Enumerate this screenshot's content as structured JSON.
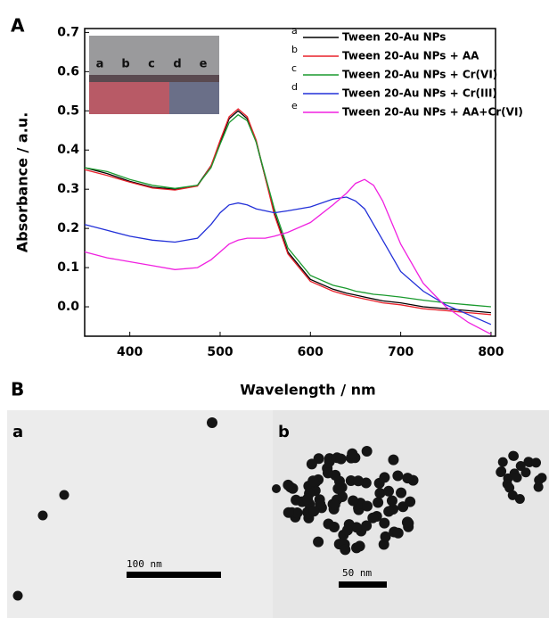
{
  "panel_labels": [
    "A",
    "B"
  ],
  "inset_labels": [
    "a",
    "b",
    "c",
    "d",
    "e"
  ],
  "tem": [
    {
      "label": "a",
      "scale_bar": "100 nm"
    },
    {
      "label": "b",
      "scale_bar": "50 nm"
    }
  ],
  "chart_data": {
    "type": "line",
    "xlabel": "Wavelength / nm",
    "ylabel": "Absorbance / a.u.",
    "x": [
      350,
      375,
      400,
      425,
      450,
      475,
      490,
      500,
      510,
      520,
      530,
      540,
      550,
      560,
      575,
      600,
      625,
      640,
      650,
      660,
      670,
      680,
      700,
      725,
      750,
      775,
      800
    ],
    "series": [
      {
        "key": "a",
        "name": "Tween 20-Au NPs",
        "color": "#000000",
        "values": [
          0.355,
          0.34,
          0.32,
          0.305,
          0.3,
          0.31,
          0.36,
          0.42,
          0.48,
          0.5,
          0.48,
          0.42,
          0.33,
          0.24,
          0.14,
          0.07,
          0.045,
          0.035,
          0.03,
          0.025,
          0.02,
          0.015,
          0.01,
          0.0,
          -0.005,
          -0.01,
          -0.015
        ]
      },
      {
        "key": "b",
        "name": "Tween 20-Au NPs + AA",
        "color": "#e8202a",
        "values": [
          0.35,
          0.335,
          0.318,
          0.303,
          0.298,
          0.308,
          0.36,
          0.425,
          0.485,
          0.505,
          0.485,
          0.425,
          0.33,
          0.235,
          0.135,
          0.065,
          0.04,
          0.03,
          0.025,
          0.02,
          0.015,
          0.01,
          0.005,
          -0.005,
          -0.01,
          -0.015,
          -0.02
        ]
      },
      {
        "key": "c",
        "name": "Tween 20-Au NPs + Cr(VI)",
        "color": "#1a9a2e",
        "values": [
          0.355,
          0.345,
          0.325,
          0.31,
          0.302,
          0.31,
          0.355,
          0.415,
          0.47,
          0.49,
          0.475,
          0.42,
          0.335,
          0.25,
          0.15,
          0.08,
          0.055,
          0.047,
          0.04,
          0.036,
          0.032,
          0.03,
          0.025,
          0.017,
          0.01,
          0.005,
          0.0
        ]
      },
      {
        "key": "d",
        "name": "Tween 20-Au NPs + Cr(III)",
        "color": "#2230d8",
        "values": [
          0.21,
          0.195,
          0.18,
          0.17,
          0.165,
          0.175,
          0.21,
          0.24,
          0.26,
          0.265,
          0.26,
          0.25,
          0.245,
          0.24,
          0.245,
          0.255,
          0.275,
          0.28,
          0.27,
          0.25,
          0.21,
          0.17,
          0.09,
          0.04,
          0.005,
          -0.02,
          -0.045
        ]
      },
      {
        "key": "e",
        "name": "Tween 20-Au NPs + AA+Cr(VI)",
        "color": "#f020e0",
        "values": [
          0.14,
          0.125,
          0.115,
          0.105,
          0.095,
          0.1,
          0.12,
          0.14,
          0.16,
          0.17,
          0.175,
          0.175,
          0.175,
          0.18,
          0.19,
          0.215,
          0.26,
          0.29,
          0.315,
          0.325,
          0.31,
          0.27,
          0.16,
          0.06,
          0.0,
          -0.04,
          -0.07
        ]
      }
    ],
    "xlim": [
      350,
      805
    ],
    "ylim": [
      -0.075,
      0.71
    ],
    "xticks": [
      400,
      500,
      600,
      700,
      800
    ],
    "yticks": [
      {
        "value": 0,
        "label": "0.0"
      },
      0.1,
      0.2,
      0.3,
      0.4,
      0.5,
      0.6,
      0.7
    ]
  }
}
